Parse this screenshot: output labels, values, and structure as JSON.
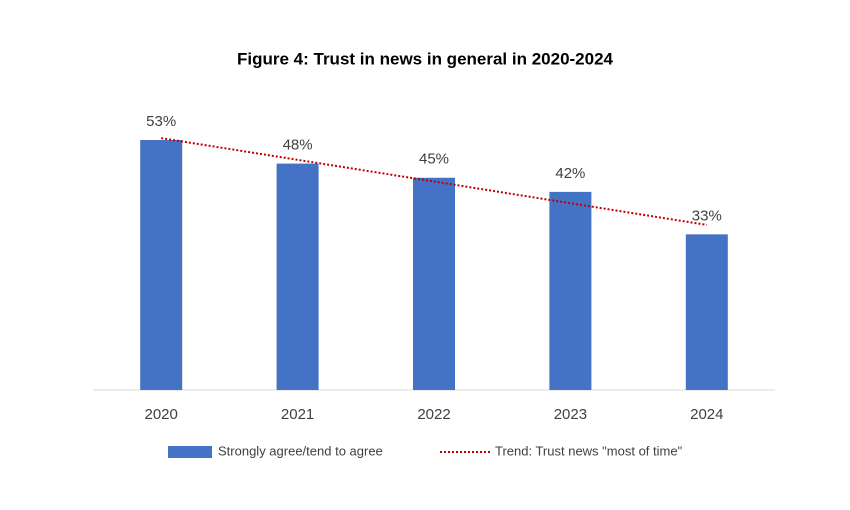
{
  "chart_data": {
    "type": "bar",
    "title": "Figure 4: Trust in news in general in 2020-2024",
    "categories": [
      "2020",
      "2021",
      "2022",
      "2023",
      "2024"
    ],
    "series": [
      {
        "name": "Strongly agree/tend to agree",
        "color": "#4472c4",
        "type": "bar",
        "values": [
          53,
          48,
          45,
          42,
          33
        ],
        "value_labels": [
          "53%",
          "48%",
          "45%",
          "42%",
          "33%"
        ]
      },
      {
        "name": "Trend: Trust news \"most of time\"",
        "color": "#c00000",
        "type": "line",
        "line_style": "dotted",
        "values": [
          53.4,
          48.8,
          44.2,
          39.6,
          35.0
        ]
      }
    ],
    "ylim": [
      0,
      60
    ],
    "grid": false,
    "legend": "bottom"
  }
}
